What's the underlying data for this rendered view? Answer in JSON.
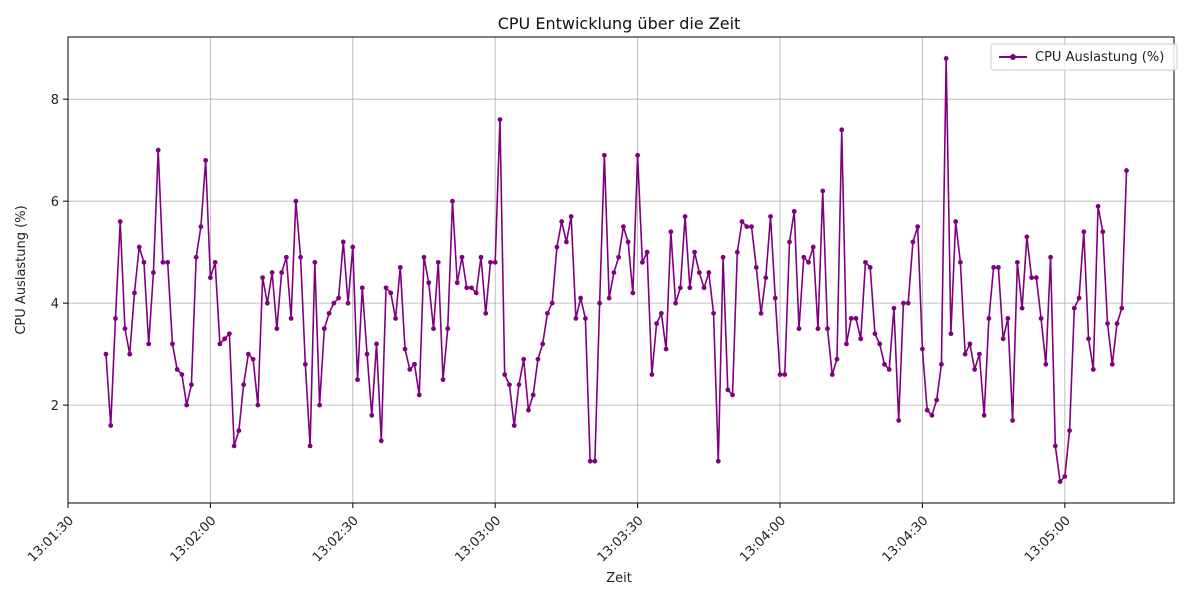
{
  "chart_data": {
    "type": "line",
    "title": "CPU Entwicklung über die Zeit",
    "xlabel": "Zeit",
    "ylabel": "CPU Auslastung (%)",
    "x_start": "13:01:38",
    "x_step_seconds": 1,
    "x_ticks": [
      "13:01:30",
      "13:02:00",
      "13:02:30",
      "13:03:00",
      "13:03:30",
      "13:04:00",
      "13:04:30",
      "13:05:00"
    ],
    "y_ticks": [
      2,
      4,
      6,
      8
    ],
    "xlim": [
      "13:01:30",
      "13:05:23"
    ],
    "ylim": [
      0.08,
      9.22
    ],
    "grid": true,
    "legend": "top-right",
    "colors": {
      "line": "#800080"
    },
    "series": [
      {
        "name": "CPU Auslastung (%)",
        "values": [
          3.0,
          1.6,
          3.7,
          5.6,
          3.5,
          3.0,
          4.2,
          5.1,
          4.8,
          3.2,
          4.6,
          7.0,
          4.8,
          4.8,
          3.2,
          2.7,
          2.6,
          2.0,
          2.4,
          4.9,
          5.5,
          6.8,
          4.5,
          4.8,
          3.2,
          3.3,
          3.4,
          1.2,
          1.5,
          2.4,
          3.0,
          2.9,
          2.0,
          4.5,
          4.0,
          4.6,
          3.5,
          4.6,
          4.9,
          3.7,
          6.0,
          4.9,
          2.8,
          1.2,
          4.8,
          2.0,
          3.5,
          3.8,
          4.0,
          4.1,
          5.2,
          4.0,
          5.1,
          2.5,
          4.3,
          3.0,
          1.8,
          3.2,
          1.3,
          4.3,
          4.2,
          3.7,
          4.7,
          3.1,
          2.7,
          2.8,
          2.2,
          4.9,
          4.4,
          3.5,
          4.8,
          2.5,
          3.5,
          6.0,
          4.4,
          4.9,
          4.3,
          4.3,
          4.2,
          4.9,
          3.8,
          4.8,
          4.8,
          7.6,
          2.6,
          2.4,
          1.6,
          2.4,
          2.9,
          1.9,
          2.2,
          2.9,
          3.2,
          3.8,
          4.0,
          5.1,
          5.6,
          5.2,
          5.7,
          3.7,
          4.1,
          3.7,
          0.9,
          0.9,
          4.0,
          6.9,
          4.1,
          4.6,
          4.9,
          5.5,
          5.2,
          4.2,
          6.9,
          4.8,
          5.0,
          2.6,
          3.6,
          3.8,
          3.1,
          5.4,
          4.0,
          4.3,
          5.7,
          4.3,
          5.0,
          4.6,
          4.3,
          4.6,
          3.8,
          0.9,
          4.9,
          2.3,
          2.2,
          5.0,
          5.6,
          5.5,
          5.5,
          4.7,
          3.8,
          4.5,
          5.7,
          4.1,
          2.6,
          2.6,
          5.2,
          5.8,
          3.5,
          4.9,
          4.8,
          5.1,
          3.5,
          6.2,
          3.5,
          2.6,
          2.9,
          7.4,
          3.2,
          3.7,
          3.7,
          3.3,
          4.8,
          4.7,
          3.4,
          3.2,
          2.8,
          2.7,
          3.9,
          1.7,
          4.0,
          4.0,
          5.2,
          5.5,
          3.1,
          1.9,
          1.8,
          2.1,
          2.8,
          8.8,
          3.4,
          5.6,
          4.8,
          3.0,
          3.2,
          2.7,
          3.0,
          1.8,
          3.7,
          4.7,
          4.7,
          3.3,
          3.7,
          1.7,
          4.8,
          3.9,
          5.3,
          4.5,
          4.5,
          3.7,
          2.8,
          4.9,
          1.2,
          0.5,
          0.6,
          1.5,
          3.9,
          4.1,
          5.4,
          3.3,
          2.7,
          5.9,
          5.4,
          3.6,
          2.8,
          3.6,
          3.9,
          6.6
        ]
      }
    ]
  }
}
